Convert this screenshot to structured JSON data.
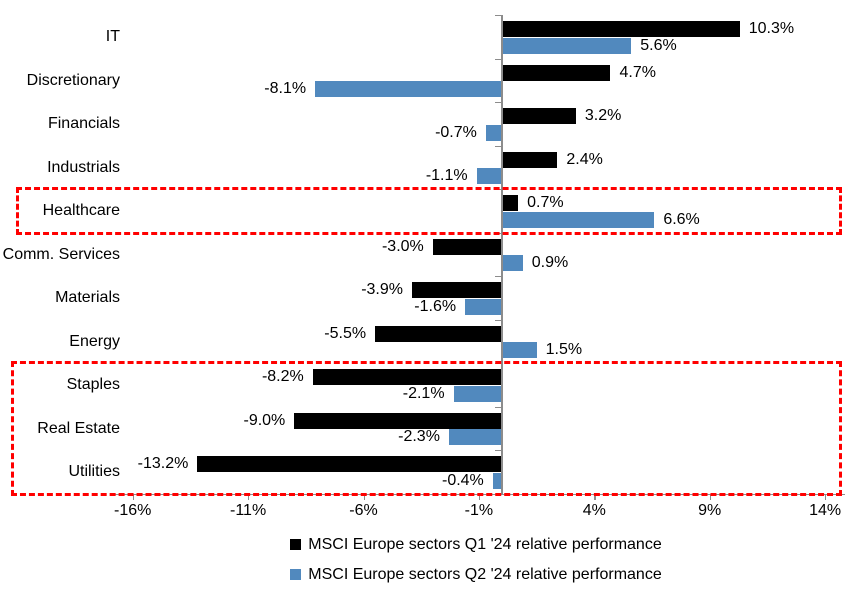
{
  "colors": {
    "q1_bar": "#000000",
    "q2_bar": "#5189BE",
    "highlight_box": "#FF0000",
    "axis_line": "#8C8C8C",
    "text": "#000000",
    "background": "#FFFFFF"
  },
  "chart_data": {
    "type": "bar",
    "orientation": "horizontal",
    "title": "",
    "xlabel": "",
    "ylabel": "",
    "grid": false,
    "legend_position": "bottom",
    "categories": [
      "IT",
      "Discretionary",
      "Financials",
      "Industrials",
      "Healthcare",
      "Comm. Services",
      "Materials",
      "Energy",
      "Staples",
      "Real Estate",
      "Utilities"
    ],
    "series": [
      {
        "name": "MSCI Europe sectors Q1 '24 relative performance",
        "color": "#000000",
        "values": [
          10.3,
          4.7,
          3.2,
          2.4,
          0.7,
          -3.0,
          -3.9,
          -5.5,
          -8.2,
          -9.0,
          -13.2
        ],
        "labels": [
          "10.3%",
          "4.7%",
          "3.2%",
          "2.4%",
          "0.7%",
          "-3.0%",
          "-3.9%",
          "-5.5%",
          "-8.2%",
          "-9.0%",
          "-13.2%"
        ]
      },
      {
        "name": "MSCI Europe sectors Q2 '24 relative performance",
        "color": "#5189BE",
        "values": [
          5.6,
          -8.1,
          -0.7,
          -1.1,
          6.6,
          0.9,
          -1.6,
          1.5,
          -2.1,
          -2.3,
          -0.4
        ],
        "labels": [
          "5.6%",
          "-8.1%",
          "-0.7%",
          "-1.1%",
          "6.6%",
          "0.9%",
          "-1.6%",
          "1.5%",
          "-2.1%",
          "-2.3%",
          "-0.4%"
        ]
      }
    ],
    "x_axis": {
      "unit": "%",
      "tick_values": [
        -16,
        -11,
        -6,
        -1,
        4,
        9,
        14
      ],
      "tick_labels": [
        "-16%",
        "-11%",
        "-6%",
        "-1%",
        "4%",
        "9%",
        "14%"
      ],
      "range": [
        -17,
        14.9
      ]
    },
    "highlight_boxes": [
      {
        "rows": [
          "Healthcare"
        ],
        "row_start": 4,
        "row_end": 4,
        "color": "#FF0000"
      },
      {
        "rows": [
          "Staples",
          "Real Estate",
          "Utilities"
        ],
        "row_start": 8,
        "row_end": 10,
        "color": "#FF0000"
      }
    ]
  }
}
